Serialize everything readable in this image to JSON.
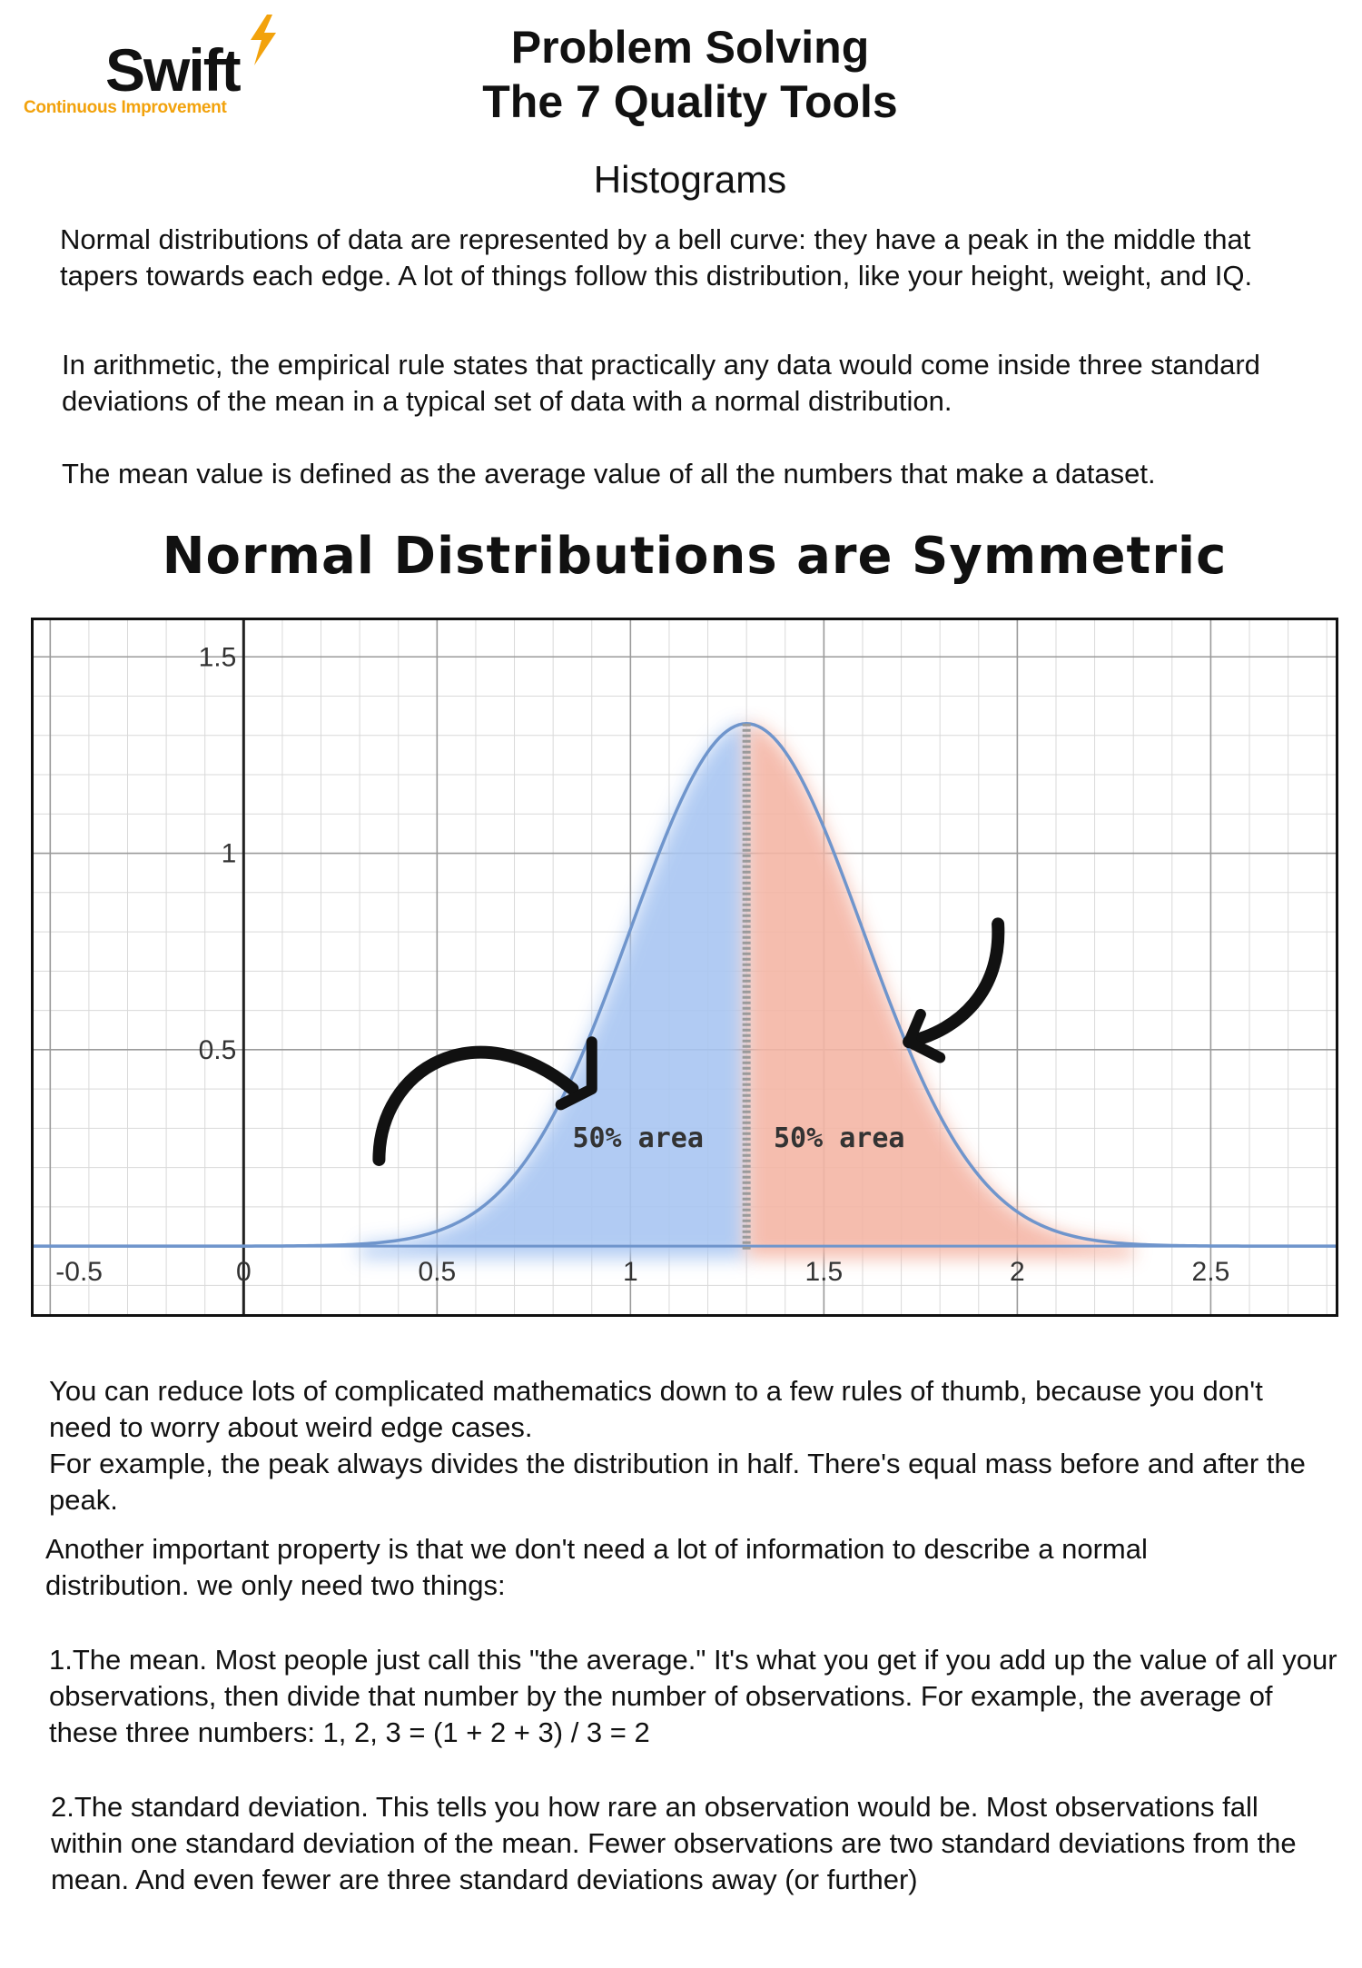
{
  "logo": {
    "word": "Swift",
    "tagline": "Continuous Improvement",
    "accent_color": "#f2a20c"
  },
  "header": {
    "title_line1": "Problem Solving",
    "title_line2": "The 7 Quality Tools",
    "subtitle": "Histograms"
  },
  "intro": {
    "p1": "Normal distributions of data are represented by a bell curve: they have a peak in the middle that tapers towards each edge. A lot of things follow this distribution, like your height,  weight, and IQ.",
    "p2": "In arithmetic, the empirical rule states that practically any data would come inside three standard deviations of the mean in a typical set of data with a normal distribution.",
    "p3": "The mean value is defined as the average value of all the numbers that make a dataset."
  },
  "chart_data": {
    "type": "area",
    "title": "Normal Distributions are Symmetric",
    "xlabel": "",
    "ylabel": "",
    "xlim": [
      -0.55,
      2.83
    ],
    "ylim": [
      -0.18,
      1.6
    ],
    "x_ticks": [
      "-0.5",
      "0",
      "0.5",
      "1",
      "1.5",
      "2",
      "2.5"
    ],
    "x_tick_values": [
      -0.5,
      0,
      0.5,
      1,
      1.5,
      2,
      2.5
    ],
    "y_ticks": [
      "0.5",
      "1",
      "1.5"
    ],
    "y_tick_values": [
      0.5,
      1,
      1.5
    ],
    "grid": true,
    "curve": {
      "mean": 1.3,
      "sd": 0.3,
      "peak": 1.33
    },
    "series": [
      {
        "region": "left",
        "x_range": [
          0.3,
          1.3
        ],
        "color": "#a9c6f2"
      },
      {
        "region": "right",
        "x_range": [
          1.3,
          2.3
        ],
        "color": "#f4b6a6"
      }
    ],
    "annotations": [
      {
        "text": "50% area",
        "x": 0.85,
        "y": 0.28
      },
      {
        "text": "50% area",
        "x": 1.37,
        "y": 0.28
      }
    ],
    "line_color": "#6f95cc"
  },
  "outro": {
    "p1": "You can reduce lots of complicated mathematics down to a few rules of thumb, because you don't need to worry about weird edge cases.",
    "p2": "For example, the peak always divides the distribution in half. There's equal mass before and after the peak.",
    "p3": "Another important property is that we don't need a lot of information to describe a normal distribution. we only need two things:",
    "p4": "1.The mean. Most people just call this \"the average.\" It's what you get if you add up the value of all your observations, then divide that number by the number of observations. For example, the average of these three numbers: 1, 2, 3 = (1 + 2 + 3) / 3 = 2",
    "p5": "2.The standard deviation. This tells you how rare an observation would be. Most observations fall within one standard deviation of the mean. Fewer observations are two standard deviations from the mean. And even fewer are three standard deviations away (or further)"
  }
}
